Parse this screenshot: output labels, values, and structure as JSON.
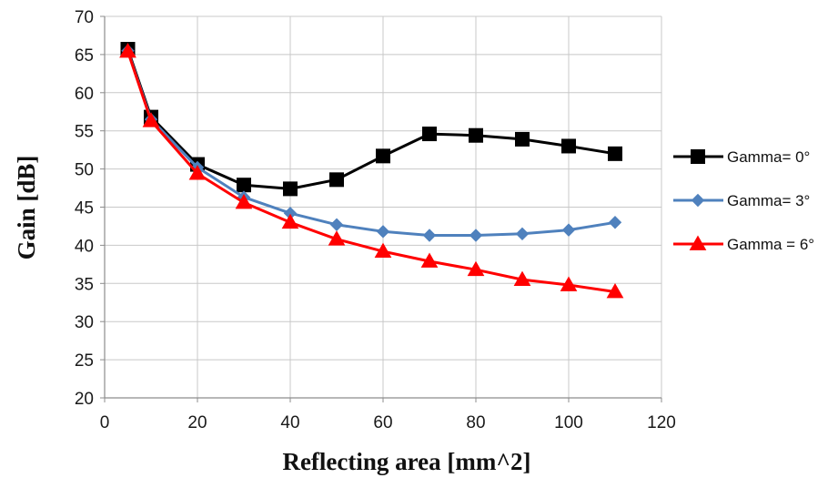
{
  "chart_data": {
    "type": "line",
    "title": "",
    "xlabel": "Reflecting area [mm^2]",
    "ylabel": "Gain [dB]",
    "xlim": [
      0,
      120
    ],
    "ylim": [
      20,
      70
    ],
    "xticks": [
      0,
      20,
      40,
      60,
      80,
      100,
      120
    ],
    "yticks": [
      20,
      25,
      30,
      35,
      40,
      45,
      50,
      55,
      60,
      65,
      70
    ],
    "xtick_labels": [
      "0",
      "20",
      "40",
      "60",
      "80",
      "100",
      "120"
    ],
    "ytick_labels": [
      "20",
      "25",
      "30",
      "35",
      "40",
      "45",
      "50",
      "55",
      "60",
      "65",
      "70"
    ],
    "grid": true,
    "legend_position": "right",
    "series": [
      {
        "name": "Gamma= 0°",
        "color": "#000000",
        "marker": "square",
        "x": [
          5,
          10,
          20,
          30,
          40,
          50,
          60,
          70,
          80,
          90,
          100,
          110
        ],
        "y": [
          65.7,
          56.8,
          50.6,
          47.9,
          47.4,
          48.6,
          51.7,
          54.6,
          54.4,
          53.9,
          53.0,
          52.0
        ]
      },
      {
        "name": "Gamma= 3°",
        "color": "#4f81bd",
        "marker": "diamond",
        "x": [
          5,
          10,
          20,
          30,
          40,
          50,
          60,
          70,
          80,
          90,
          100,
          110
        ],
        "y": [
          65.5,
          56.5,
          50.2,
          46.3,
          44.2,
          42.7,
          41.8,
          41.3,
          41.3,
          41.5,
          42.0,
          43.0
        ]
      },
      {
        "name": "Gamma = 6°",
        "color": "#ff0000",
        "marker": "triangle",
        "x": [
          5,
          10,
          20,
          30,
          40,
          50,
          60,
          70,
          80,
          90,
          100,
          110
        ],
        "y": [
          65.4,
          56.3,
          49.4,
          45.6,
          43.0,
          40.8,
          39.2,
          37.9,
          36.8,
          35.5,
          34.8,
          33.9
        ]
      }
    ]
  }
}
